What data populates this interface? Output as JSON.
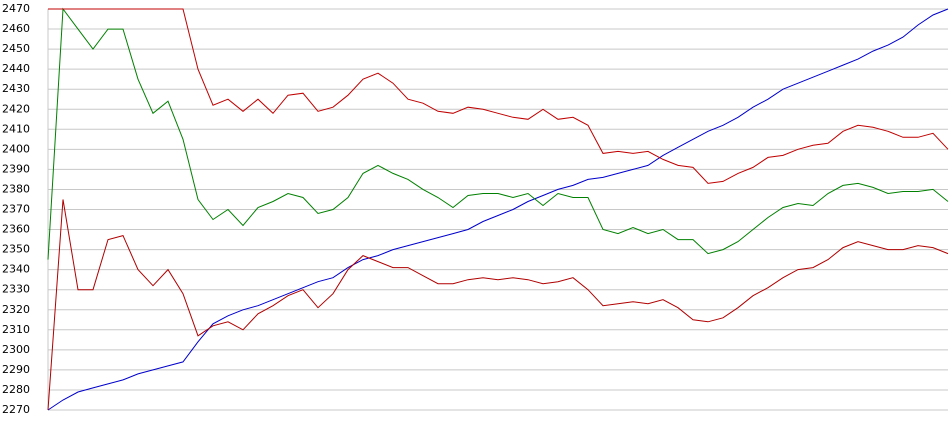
{
  "chart_data": {
    "type": "line",
    "ylim": [
      2270,
      2470
    ],
    "yticks": [
      2270,
      2280,
      2290,
      2300,
      2310,
      2320,
      2330,
      2340,
      2350,
      2360,
      2370,
      2380,
      2390,
      2400,
      2410,
      2420,
      2430,
      2440,
      2450,
      2460,
      2470
    ],
    "grid": true,
    "series": [
      {
        "color": "#0000cc",
        "values": [
          2270,
          2275,
          2279,
          2281,
          2283,
          2285,
          2288,
          2290,
          2292,
          2294,
          2304,
          2313,
          2317,
          2320,
          2322,
          2325,
          2328,
          2331,
          2334,
          2336,
          2341,
          2345,
          2347,
          2350,
          2352,
          2354,
          2356,
          2358,
          2360,
          2364,
          2367,
          2370,
          2374,
          2377,
          2380,
          2382,
          2385,
          2386,
          2388,
          2390,
          2392,
          2397,
          2401,
          2405,
          2409,
          2412,
          2416,
          2421,
          2425,
          2430,
          2433,
          2436,
          2439,
          2442,
          2445,
          2449,
          2452,
          2456,
          2462,
          2467,
          2470
        ]
      },
      {
        "color": "#008000",
        "values": [
          2345,
          2470,
          2460,
          2450,
          2460,
          2460,
          2435,
          2418,
          2424,
          2405,
          2375,
          2365,
          2370,
          2362,
          2371,
          2374,
          2378,
          2376,
          2368,
          2370,
          2376,
          2388,
          2392,
          2388,
          2385,
          2380,
          2376,
          2371,
          2377,
          2378,
          2378,
          2376,
          2378,
          2372,
          2378,
          2376,
          2376,
          2360,
          2358,
          2361,
          2358,
          2360,
          2355,
          2355,
          2348,
          2350,
          2354,
          2360,
          2366,
          2371,
          2373,
          2372,
          2378,
          2382,
          2383,
          2381,
          2378,
          2379,
          2379,
          2380,
          2374
        ]
      },
      {
        "color": "#c00000",
        "values": [
          2470,
          2470,
          2470,
          2470,
          2470,
          2470,
          2470,
          2470,
          2470,
          2470,
          2440,
          2422,
          2425,
          2419,
          2425,
          2418,
          2427,
          2428,
          2419,
          2421,
          2427,
          2435,
          2438,
          2433,
          2425,
          2423,
          2419,
          2418,
          2421,
          2420,
          2418,
          2416,
          2415,
          2420,
          2415,
          2416,
          2412,
          2398,
          2399,
          2398,
          2399,
          2395,
          2392,
          2391,
          2383,
          2384,
          2388,
          2391,
          2396,
          2397,
          2400,
          2402,
          2403,
          2409,
          2412,
          2411,
          2409,
          2406,
          2406,
          2408,
          2400
        ]
      },
      {
        "color": "#b00000",
        "values": [
          2270,
          2375,
          2330,
          2330,
          2355,
          2357,
          2340,
          2332,
          2340,
          2328,
          2307,
          2312,
          2314,
          2310,
          2318,
          2322,
          2327,
          2330,
          2321,
          2328,
          2340,
          2347,
          2344,
          2341,
          2341,
          2337,
          2333,
          2333,
          2335,
          2336,
          2335,
          2336,
          2335,
          2333,
          2334,
          2336,
          2330,
          2322,
          2323,
          2324,
          2323,
          2325,
          2321,
          2315,
          2314,
          2316,
          2321,
          2327,
          2331,
          2336,
          2340,
          2341,
          2345,
          2351,
          2354,
          2352,
          2350,
          2350,
          2352,
          2351,
          2348
        ]
      }
    ]
  }
}
